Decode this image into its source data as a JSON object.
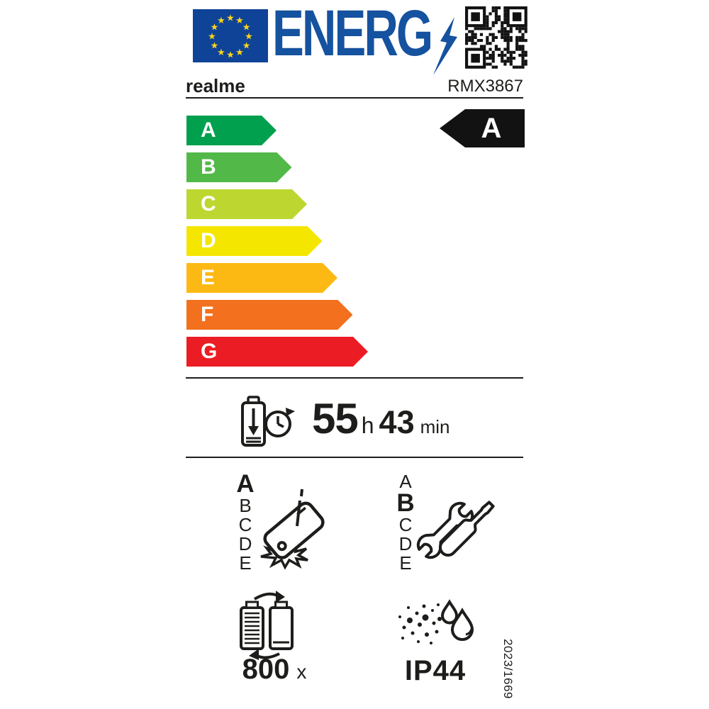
{
  "header": {
    "energy_logo_text": "ENERG",
    "colors": {
      "eu_blue": "#0e4397",
      "logo_blue": "#15529f",
      "star_yellow": "#ffd617",
      "ink": "#1d1d1b",
      "rating_badge_bg": "#121212"
    }
  },
  "brand": {
    "manufacturer": "realme",
    "model": "RMX3867"
  },
  "energy_scale": {
    "rating": "A",
    "classes": [
      {
        "letter": "A",
        "color": "#00a04e"
      },
      {
        "letter": "B",
        "color": "#52b948"
      },
      {
        "letter": "C",
        "color": "#bed630"
      },
      {
        "letter": "D",
        "color": "#f5e600"
      },
      {
        "letter": "E",
        "color": "#fdb913"
      },
      {
        "letter": "F",
        "color": "#f3701e"
      },
      {
        "letter": "G",
        "color": "#ec1c24"
      }
    ]
  },
  "battery_endurance": {
    "hours": "55",
    "hours_unit": "h",
    "minutes": "43",
    "minutes_unit": "min"
  },
  "reliability_class": {
    "options": [
      "A",
      "B",
      "C",
      "D",
      "E"
    ],
    "selected": "A"
  },
  "repairability_class": {
    "options": [
      "A",
      "B",
      "C",
      "D",
      "E"
    ],
    "selected": "B"
  },
  "battery_cycles": {
    "value": "800",
    "unit": "x"
  },
  "ingress_protection": {
    "rating": "IP44"
  },
  "regulation_number": "2023/1669",
  "icons": {
    "eu_flag": "eu-flag",
    "energy_lightning": "lightning-bolt",
    "qr_code": "qr-code",
    "battery_endurance": "battery-discharging-clock",
    "reliability": "falling-phone-impact",
    "repairability": "wrench-and-screwdriver",
    "battery_cycles": "two-batteries-cycle-arrows",
    "ingress_protection": "dust-and-water-drops"
  }
}
